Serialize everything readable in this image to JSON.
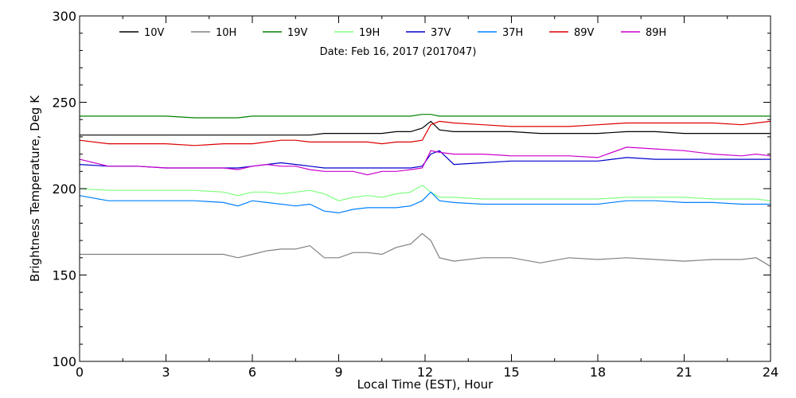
{
  "chart_data": {
    "type": "line",
    "annotation": "Date: Feb 16, 2017 (2017047)",
    "xlabel": "Local Time (EST), Hour",
    "ylabel": "Brightness Temperature, Deg K",
    "xlim": [
      0,
      24
    ],
    "ylim": [
      100,
      300
    ],
    "x_ticks": [
      0,
      3,
      6,
      9,
      12,
      15,
      18,
      21,
      24
    ],
    "y_ticks": [
      100,
      150,
      200,
      250,
      300
    ],
    "grid": false,
    "legend_position": "top",
    "x": [
      0,
      1,
      2,
      3,
      4,
      5,
      5.5,
      6,
      6.5,
      7,
      7.5,
      8,
      8.5,
      9,
      9.5,
      10,
      10.5,
      11,
      11.5,
      11.9,
      12.2,
      12.5,
      13,
      14,
      15,
      16,
      17,
      18,
      19,
      20,
      21,
      22,
      23,
      23.5,
      24
    ],
    "series": [
      {
        "name": "10V",
        "color": "#000000",
        "values": [
          231,
          231,
          231,
          231,
          231,
          231,
          231,
          231,
          231,
          231,
          231,
          231,
          232,
          232,
          232,
          232,
          232,
          233,
          233,
          235,
          239,
          234,
          233,
          233,
          233,
          232,
          232,
          232,
          233,
          233,
          232,
          232,
          232,
          232,
          232
        ]
      },
      {
        "name": "10H",
        "color": "#808080",
        "values": [
          162,
          162,
          162,
          162,
          162,
          162,
          160,
          162,
          164,
          165,
          165,
          167,
          160,
          160,
          163,
          163,
          162,
          166,
          168,
          174,
          170,
          160,
          158,
          160,
          160,
          157,
          160,
          159,
          160,
          159,
          158,
          159,
          159,
          160,
          155
        ]
      },
      {
        "name": "19V",
        "color": "#008000",
        "values": [
          242,
          242,
          242,
          242,
          241,
          241,
          241,
          242,
          242,
          242,
          242,
          242,
          242,
          242,
          242,
          242,
          242,
          242,
          242,
          243,
          243,
          242,
          242,
          242,
          242,
          242,
          242,
          242,
          242,
          242,
          242,
          242,
          242,
          242,
          242
        ]
      },
      {
        "name": "19H",
        "color": "#80ff80",
        "values": [
          200,
          199,
          199,
          199,
          199,
          198,
          196,
          198,
          198,
          197,
          198,
          199,
          197,
          193,
          195,
          196,
          195,
          197,
          198,
          202,
          198,
          195,
          195,
          194,
          194,
          194,
          194,
          194,
          195,
          195,
          195,
          194,
          194,
          194,
          193
        ]
      },
      {
        "name": "37V",
        "color": "#0000cc",
        "values": [
          214,
          213,
          213,
          212,
          212,
          212,
          212,
          213,
          214,
          215,
          214,
          213,
          212,
          212,
          212,
          212,
          212,
          212,
          212,
          213,
          220,
          222,
          214,
          215,
          216,
          216,
          216,
          216,
          218,
          217,
          217,
          217,
          217,
          217,
          217
        ]
      },
      {
        "name": "37H",
        "color": "#0080ff",
        "values": [
          196,
          193,
          193,
          193,
          193,
          192,
          190,
          193,
          192,
          191,
          190,
          191,
          187,
          186,
          188,
          189,
          189,
          189,
          190,
          193,
          198,
          193,
          192,
          191,
          191,
          191,
          191,
          191,
          193,
          193,
          192,
          192,
          191,
          191,
          191
        ]
      },
      {
        "name": "89V",
        "color": "#dd0000",
        "values": [
          228,
          226,
          226,
          226,
          225,
          226,
          226,
          226,
          227,
          228,
          228,
          227,
          227,
          227,
          227,
          227,
          226,
          227,
          227,
          228,
          237,
          239,
          238,
          237,
          236,
          236,
          236,
          237,
          238,
          238,
          238,
          238,
          237,
          238,
          239
        ]
      },
      {
        "name": "89H",
        "color": "#cc00cc",
        "values": [
          217,
          213,
          213,
          212,
          212,
          212,
          211,
          213,
          214,
          213,
          213,
          211,
          210,
          210,
          210,
          208,
          210,
          210,
          211,
          212,
          222,
          221,
          220,
          220,
          219,
          219,
          219,
          218,
          224,
          223,
          222,
          220,
          219,
          220,
          219
        ]
      }
    ]
  }
}
